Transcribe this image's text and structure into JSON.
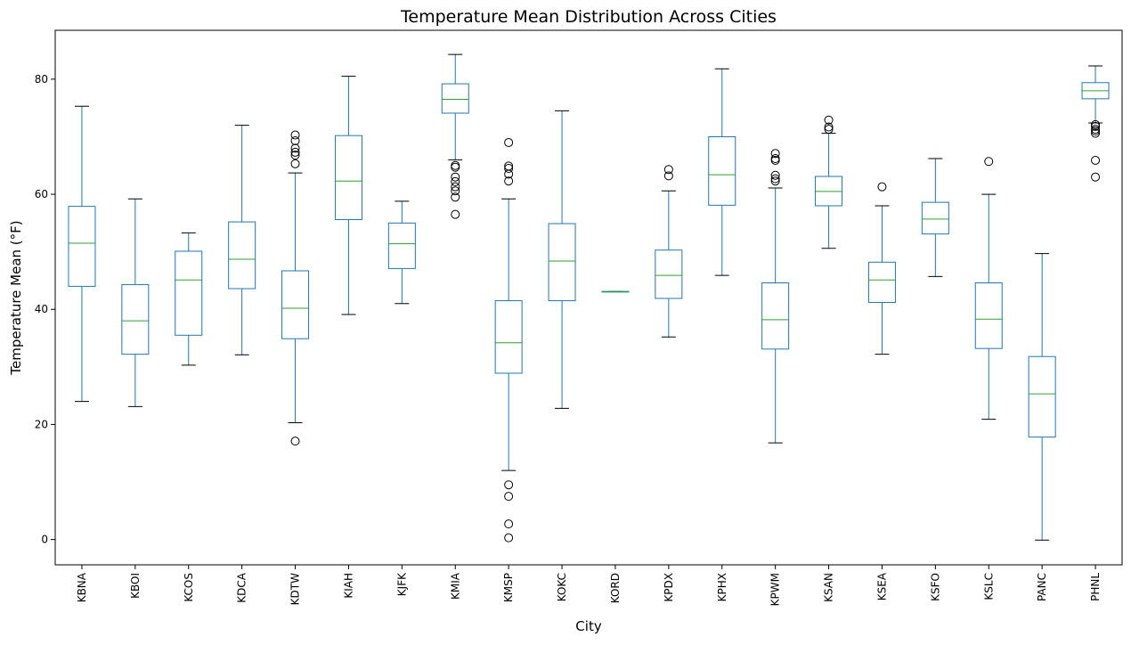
{
  "chart_data": {
    "type": "box",
    "title": "Temperature Mean Distribution Across Cities",
    "xlabel": "City",
    "ylabel": "Temperature Mean (°F)",
    "ylim": [
      -4.4,
      88.5
    ],
    "yticks": [
      0,
      20,
      40,
      60,
      80
    ],
    "grid": false,
    "legend": "none",
    "colors": {
      "box": "#1f77b4",
      "median": "#2ca02c",
      "whisker_cap": "#000000",
      "flier": "#000000"
    },
    "categories": [
      "KBNA",
      "KBOI",
      "KCOS",
      "KDCA",
      "KDTW",
      "KIAH",
      "KJFK",
      "KMIA",
      "KMSP",
      "KOKC",
      "KORD",
      "KPDX",
      "KPHX",
      "KPWM",
      "KSAN",
      "KSEA",
      "KSFO",
      "KSLC",
      "PANC",
      "PHNL"
    ],
    "boxes": [
      {
        "city": "KBNA",
        "whislo": 24.0,
        "q1": 44.0,
        "med": 51.5,
        "q3": 57.9,
        "whishi": 75.3,
        "fliers": []
      },
      {
        "city": "KBOI",
        "whislo": 23.1,
        "q1": 32.2,
        "med": 38.0,
        "q3": 44.3,
        "whishi": 59.2,
        "fliers": []
      },
      {
        "city": "KCOS",
        "whislo": 30.3,
        "q1": 35.5,
        "med": 45.1,
        "q3": 50.1,
        "whishi": 53.3,
        "fliers": []
      },
      {
        "city": "KDCA",
        "whislo": 32.1,
        "q1": 43.6,
        "med": 48.7,
        "q3": 55.2,
        "whishi": 72.0,
        "fliers": []
      },
      {
        "city": "KDTW",
        "whislo": 20.3,
        "q1": 34.9,
        "med": 40.2,
        "q3": 46.7,
        "whishi": 63.7,
        "fliers": [
          17.1,
          65.3,
          66.8,
          67.3,
          68.0,
          69.3,
          70.3
        ]
      },
      {
        "city": "KIAH",
        "whislo": 39.1,
        "q1": 55.6,
        "med": 62.3,
        "q3": 70.2,
        "whishi": 80.5,
        "fliers": []
      },
      {
        "city": "KJFK",
        "whislo": 41.0,
        "q1": 47.1,
        "med": 51.4,
        "q3": 55.0,
        "whishi": 58.8,
        "fliers": []
      },
      {
        "city": "KMIA",
        "whislo": 66.0,
        "q1": 74.1,
        "med": 76.5,
        "q3": 79.2,
        "whishi": 84.3,
        "fliers": [
          56.5,
          59.5,
          60.6,
          61.3,
          62.2,
          63.0,
          64.7,
          65.0
        ]
      },
      {
        "city": "KMSP",
        "whislo": 12.0,
        "q1": 28.9,
        "med": 34.2,
        "q3": 41.5,
        "whishi": 59.2,
        "fliers": [
          0.3,
          2.7,
          7.5,
          9.5,
          62.3,
          63.5,
          64.5,
          64.9,
          69.0
        ]
      },
      {
        "city": "KOKC",
        "whislo": 22.8,
        "q1": 41.5,
        "med": 48.4,
        "q3": 54.9,
        "whishi": 74.5,
        "fliers": []
      },
      {
        "city": "KORD",
        "whislo": 43.1,
        "q1": 43.1,
        "med": 43.1,
        "q3": 43.1,
        "whishi": 43.1,
        "fliers": []
      },
      {
        "city": "KPDX",
        "whislo": 35.2,
        "q1": 41.9,
        "med": 45.9,
        "q3": 50.3,
        "whishi": 60.6,
        "fliers": [
          63.2,
          64.3
        ]
      },
      {
        "city": "KPHX",
        "whislo": 45.9,
        "q1": 58.1,
        "med": 63.4,
        "q3": 70.0,
        "whishi": 81.8,
        "fliers": []
      },
      {
        "city": "KPWM",
        "whislo": 16.8,
        "q1": 33.1,
        "med": 38.2,
        "q3": 44.6,
        "whishi": 61.1,
        "fliers": [
          62.3,
          62.7,
          63.3,
          65.9,
          66.2,
          67.1
        ]
      },
      {
        "city": "KSAN",
        "whislo": 50.6,
        "q1": 58.0,
        "med": 60.5,
        "q3": 63.1,
        "whishi": 70.6,
        "fliers": [
          71.3,
          71.7,
          72.9
        ]
      },
      {
        "city": "KSEA",
        "whislo": 32.2,
        "q1": 41.2,
        "med": 45.1,
        "q3": 48.2,
        "whishi": 58.0,
        "fliers": [
          61.3
        ]
      },
      {
        "city": "KSFO",
        "whislo": 45.7,
        "q1": 53.1,
        "med": 55.7,
        "q3": 58.6,
        "whishi": 66.2,
        "fliers": []
      },
      {
        "city": "KSLC",
        "whislo": 20.9,
        "q1": 33.2,
        "med": 38.3,
        "q3": 44.6,
        "whishi": 60.0,
        "fliers": [
          65.7
        ]
      },
      {
        "city": "PANC",
        "whislo": -0.1,
        "q1": 17.8,
        "med": 25.3,
        "q3": 31.8,
        "whishi": 49.7,
        "fliers": []
      },
      {
        "city": "PHNL",
        "whislo": 72.4,
        "q1": 76.6,
        "med": 78.0,
        "q3": 79.4,
        "whishi": 82.3,
        "fliers": [
          63.0,
          65.9,
          70.6,
          71.0,
          71.3,
          71.8,
          72.1
        ]
      }
    ]
  }
}
